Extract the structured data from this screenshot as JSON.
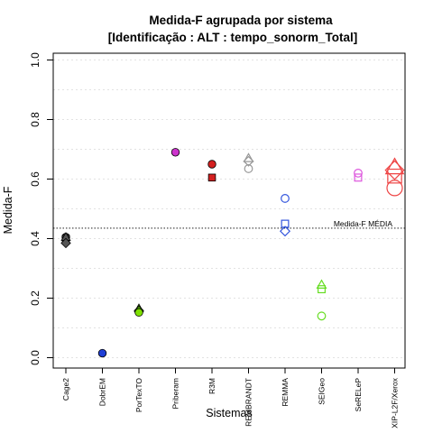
{
  "chart_data": {
    "type": "scatter",
    "title": [
      "Medida-F agrupada por sistema",
      "[Identificação : ALT : tempo_sonorm_Total]"
    ],
    "xlabel": "Sistemas",
    "ylabel": "Medida-F",
    "ylim": [
      0,
      1
    ],
    "yticks": [
      "0.0",
      "0.2",
      "0.4",
      "0.6",
      "0.8",
      "1.0"
    ],
    "grid": true,
    "categories": [
      "Cage2",
      "DobrEM",
      "PorTexTO",
      "Priberam",
      "R3M",
      "REMBRANDT",
      "REMMA",
      "SEIGeo",
      "SeRELeP",
      "XIP-L2F/Xerox"
    ],
    "reference_line": {
      "value": 0.435,
      "label": "Medida-F MÉDIA"
    },
    "points": [
      {
        "system": "Cage2",
        "shape": "circle",
        "filled": true,
        "color": "#555555",
        "y": 0.405
      },
      {
        "system": "Cage2",
        "shape": "square",
        "filled": true,
        "color": "#555555",
        "y": 0.4
      },
      {
        "system": "Cage2",
        "shape": "triangle",
        "filled": true,
        "color": "#555555",
        "y": 0.405
      },
      {
        "system": "Cage2",
        "shape": "diamond",
        "filled": true,
        "color": "#555555",
        "y": 0.385
      },
      {
        "system": "DobrEM",
        "shape": "circle",
        "filled": true,
        "color": "#1f3fd6",
        "y": 0.015
      },
      {
        "system": "PorTexTO",
        "shape": "triangle",
        "filled": true,
        "color": "#55b000",
        "y": 0.165
      },
      {
        "system": "PorTexTO",
        "shape": "diamond",
        "filled": true,
        "color": "#55b000",
        "y": 0.158
      },
      {
        "system": "PorTexTO",
        "shape": "circle",
        "filled": true,
        "color": "#7ee000",
        "y": 0.152
      },
      {
        "system": "Priberam",
        "shape": "circle",
        "filled": true,
        "color": "#cc33cc",
        "y": 0.69
      },
      {
        "system": "R3M",
        "shape": "circle",
        "filled": true,
        "color": "#d42020",
        "y": 0.65
      },
      {
        "system": "R3M",
        "shape": "square",
        "filled": true,
        "color": "#d42020",
        "y": 0.605
      },
      {
        "system": "REMBRANDT",
        "shape": "triangle",
        "filled": false,
        "color": "#999999",
        "y": 0.67
      },
      {
        "system": "REMBRANDT",
        "shape": "diamond",
        "filled": false,
        "color": "#999999",
        "y": 0.66
      },
      {
        "system": "REMBRANDT",
        "shape": "circle",
        "filled": false,
        "color": "#999999",
        "y": 0.635
      },
      {
        "system": "REMMA",
        "shape": "circle",
        "filled": false,
        "color": "#3355dd",
        "y": 0.535
      },
      {
        "system": "REMMA",
        "shape": "square",
        "filled": false,
        "color": "#3355dd",
        "y": 0.45
      },
      {
        "system": "REMMA",
        "shape": "diamond",
        "filled": false,
        "color": "#3355dd",
        "y": 0.425
      },
      {
        "system": "SEIGeo",
        "shape": "triangle",
        "filled": false,
        "color": "#66dd22",
        "y": 0.245
      },
      {
        "system": "SEIGeo",
        "shape": "square",
        "filled": false,
        "color": "#66dd22",
        "y": 0.23
      },
      {
        "system": "SEIGeo",
        "shape": "circle",
        "filled": false,
        "color": "#66dd22",
        "y": 0.14
      },
      {
        "system": "SeRELeP",
        "shape": "circle",
        "filled": false,
        "color": "#dd55dd",
        "y": 0.62
      },
      {
        "system": "SeRELeP",
        "shape": "square",
        "filled": false,
        "color": "#dd55dd",
        "y": 0.605
      },
      {
        "system": "XIP-L2F/Xerox",
        "shape": "triangle",
        "filled": false,
        "color": "#ee4444",
        "y": 0.64,
        "size": "large"
      },
      {
        "system": "XIP-L2F/Xerox",
        "shape": "diamond",
        "filled": false,
        "color": "#ee4444",
        "y": 0.63,
        "size": "large"
      },
      {
        "system": "XIP-L2F/Xerox",
        "shape": "square",
        "filled": false,
        "color": "#ee4444",
        "y": 0.61,
        "size": "large"
      },
      {
        "system": "XIP-L2F/Xerox",
        "shape": "circle",
        "filled": false,
        "color": "#ee4444",
        "y": 0.57,
        "size": "large"
      }
    ]
  }
}
